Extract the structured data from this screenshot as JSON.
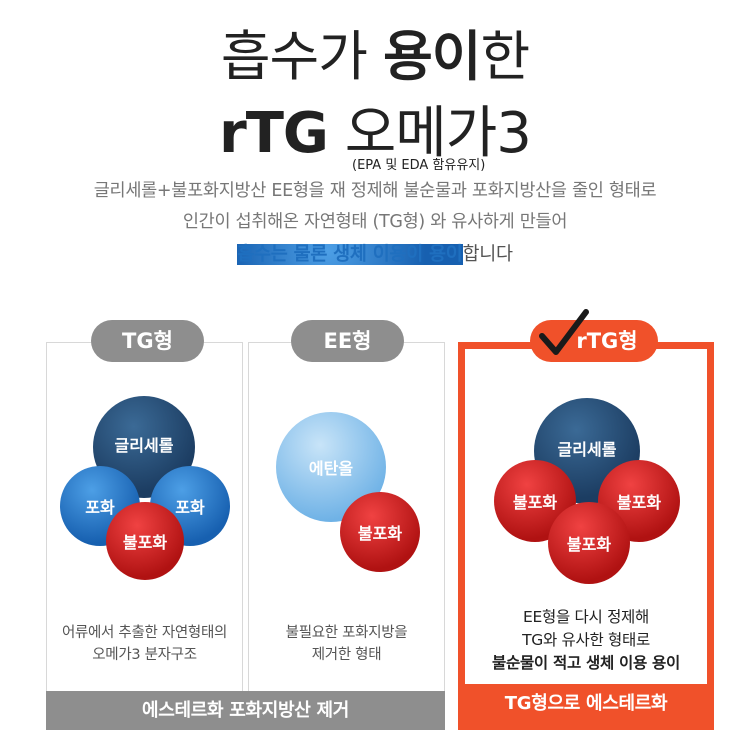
{
  "header": {
    "title_part1": "흡수가 ",
    "title_bold": "용이",
    "title_part2": "한",
    "product_bold": "rTG",
    "product_rest": " 오메가3",
    "note": "(EPA 및 EDA 함유유지)"
  },
  "description": {
    "line1": "글리세롤+불포화지방산 EE형을 재 정제해 불순물과 포화지방산을 줄인 형태로",
    "line2": "인간이 섭취해온 자연형태 (TG형) 와 유사하게 만들어",
    "line3_highlight": "흡수는 물론 생체 이용이 용이",
    "line3_rest": "합니다"
  },
  "panels": [
    {
      "tag": "TG형",
      "balls": [
        "글리세롤",
        "포화",
        "포화",
        "불포화"
      ],
      "caption_line1": "어류에서 추출한 자연형태의",
      "caption_line2": "오메가3 분자구조"
    },
    {
      "tag": "EE형",
      "balls": [
        "에탄올",
        "불포화"
      ],
      "caption_line1": "불필요한 포화지방을",
      "caption_line2": "제거한 형태"
    },
    {
      "tag": "rTG형",
      "balls": [
        "글리세롤",
        "불포화",
        "불포화",
        "불포화"
      ],
      "caption_line1": "EE형을 다시 정제해",
      "caption_line2": "TG와 유사한 형태로",
      "caption_line3": "불순물이 적고 생체 이용 용이"
    }
  ],
  "bars": {
    "left": "에스테르화 포화지방산 제거",
    "right": "TG형으로 에스테르화"
  },
  "colors": {
    "accent": "#f0512a",
    "gray": "#8e8e8e",
    "blue_text": "#1f6fbf",
    "navy": "#1c3d62",
    "red": "#b01212"
  }
}
